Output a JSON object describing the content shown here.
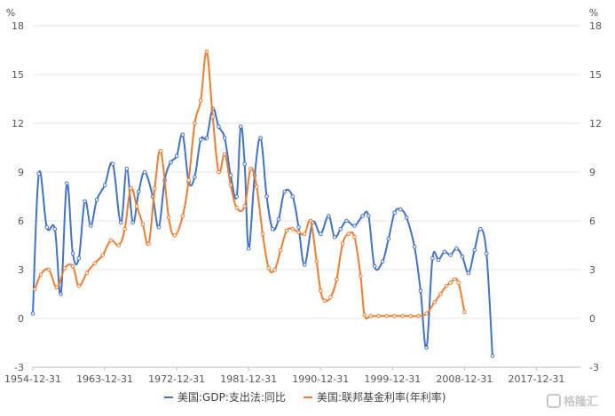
{
  "chart_data": {
    "type": "line",
    "title": "",
    "y_unit": "%",
    "ylim": [
      -3,
      18
    ],
    "yticks": [
      "-3",
      "0",
      "3",
      "6",
      "9",
      "12",
      "15",
      "18"
    ],
    "xlim": [
      1954.75,
      2023.25
    ],
    "xticks": [
      {
        "x": 1954.75,
        "label": "1954-12-31"
      },
      {
        "x": 1963.75,
        "label": "1963-12-31"
      },
      {
        "x": 1972.75,
        "label": "1972-12-31"
      },
      {
        "x": 1981.75,
        "label": "1981-12-31"
      },
      {
        "x": 1990.75,
        "label": "1990-12-31"
      },
      {
        "x": 1999.75,
        "label": "1999-12-31"
      },
      {
        "x": 2008.75,
        "label": "2008-12-31"
      },
      {
        "x": 2017.75,
        "label": "2017-12-31"
      }
    ],
    "series": [
      {
        "name": "美国:GDP:支出法:同比",
        "color": "#4472c4",
        "points": [
          [
            1954.75,
            0.3
          ],
          [
            1955.5,
            8.9
          ],
          [
            1956.5,
            5.6
          ],
          [
            1957.5,
            5.5
          ],
          [
            1958.25,
            1.5
          ],
          [
            1959.0,
            8.3
          ],
          [
            1959.75,
            4.0
          ],
          [
            1960.5,
            3.7
          ],
          [
            1961.25,
            7.2
          ],
          [
            1962.0,
            5.7
          ],
          [
            1962.75,
            7.3
          ],
          [
            1963.75,
            8.2
          ],
          [
            1964.75,
            9.5
          ],
          [
            1965.75,
            5.9
          ],
          [
            1966.5,
            9.2
          ],
          [
            1967.25,
            5.9
          ],
          [
            1968.0,
            7.8
          ],
          [
            1968.75,
            9.0
          ],
          [
            1969.75,
            7.5
          ],
          [
            1970.5,
            5.6
          ],
          [
            1971.25,
            8.5
          ],
          [
            1972.0,
            9.6
          ],
          [
            1972.75,
            10.0
          ],
          [
            1973.5,
            11.3
          ],
          [
            1974.25,
            8.4
          ],
          [
            1975.0,
            8.7
          ],
          [
            1975.75,
            11.0
          ],
          [
            1976.5,
            11.1
          ],
          [
            1977.25,
            12.9
          ],
          [
            1978.0,
            11.8
          ],
          [
            1978.75,
            11.1
          ],
          [
            1979.5,
            8.8
          ],
          [
            1980.25,
            7.5
          ],
          [
            1980.75,
            11.8
          ],
          [
            1981.25,
            9.5
          ],
          [
            1981.75,
            4.3
          ],
          [
            1982.5,
            8.8
          ],
          [
            1983.25,
            11.1
          ],
          [
            1984.0,
            7.5
          ],
          [
            1984.75,
            5.5
          ],
          [
            1985.5,
            6.1
          ],
          [
            1986.25,
            7.8
          ],
          [
            1987.25,
            7.5
          ],
          [
            1988.0,
            5.6
          ],
          [
            1988.75,
            3.3
          ],
          [
            1989.75,
            5.9
          ],
          [
            1990.75,
            5.2
          ],
          [
            1991.75,
            6.3
          ],
          [
            1992.5,
            5.0
          ],
          [
            1993.25,
            5.5
          ],
          [
            1994.0,
            6.0
          ],
          [
            1995.0,
            5.7
          ],
          [
            1996.0,
            6.3
          ],
          [
            1996.75,
            6.3
          ],
          [
            1997.5,
            3.2
          ],
          [
            1998.5,
            3.5
          ],
          [
            1999.25,
            4.9
          ],
          [
            2000.0,
            6.5
          ],
          [
            2000.75,
            6.7
          ],
          [
            2001.5,
            6.2
          ],
          [
            2002.5,
            4.4
          ],
          [
            2003.25,
            1.7
          ],
          [
            2004.0,
            -1.8
          ],
          [
            2004.75,
            3.7
          ],
          [
            2005.5,
            3.6
          ],
          [
            2006.25,
            4.1
          ],
          [
            2007.0,
            3.9
          ],
          [
            2007.75,
            4.3
          ],
          [
            2008.5,
            3.8
          ],
          [
            2009.25,
            2.8
          ],
          [
            2010.0,
            4.2
          ],
          [
            2010.75,
            5.5
          ],
          [
            2011.5,
            4.0
          ],
          [
            2012.25,
            -2.3
          ]
        ]
      },
      {
        "name": "美国:联邦基金利率(年利率)",
        "color": "#ed7d31",
        "points": [
          [
            1955.0,
            1.8
          ],
          [
            1955.75,
            2.7
          ],
          [
            1956.75,
            3.0
          ],
          [
            1957.75,
            1.9
          ],
          [
            1958.75,
            3.1
          ],
          [
            1959.75,
            3.2
          ],
          [
            1960.5,
            2.0
          ],
          [
            1961.5,
            2.8
          ],
          [
            1962.5,
            3.4
          ],
          [
            1963.5,
            3.9
          ],
          [
            1964.5,
            4.8
          ],
          [
            1965.5,
            4.5
          ],
          [
            1966.25,
            5.5
          ],
          [
            1967.0,
            8.0
          ],
          [
            1967.75,
            6.9
          ],
          [
            1968.5,
            5.8
          ],
          [
            1969.25,
            4.6
          ],
          [
            1970.0,
            8.0
          ],
          [
            1970.75,
            10.3
          ],
          [
            1971.75,
            6.2
          ],
          [
            1972.5,
            5.1
          ],
          [
            1973.5,
            6.3
          ],
          [
            1974.25,
            8.5
          ],
          [
            1975.0,
            12.0
          ],
          [
            1975.75,
            13.4
          ],
          [
            1976.5,
            16.4
          ],
          [
            1977.25,
            12.4
          ],
          [
            1978.0,
            9.0
          ],
          [
            1978.75,
            10.1
          ],
          [
            1979.5,
            8.2
          ],
          [
            1980.25,
            6.8
          ],
          [
            1981.25,
            6.9
          ],
          [
            1982.0,
            9.2
          ],
          [
            1982.75,
            8.1
          ],
          [
            1983.5,
            5.2
          ],
          [
            1984.25,
            3.1
          ],
          [
            1985.0,
            3.0
          ],
          [
            1985.75,
            4.2
          ],
          [
            1986.5,
            5.4
          ],
          [
            1987.25,
            5.5
          ],
          [
            1988.0,
            5.3
          ],
          [
            1988.75,
            5.2
          ],
          [
            1989.5,
            6.0
          ],
          [
            1990.25,
            3.5
          ],
          [
            1990.75,
            1.7
          ],
          [
            1991.25,
            1.1
          ],
          [
            1992.0,
            1.3
          ],
          [
            1992.75,
            2.4
          ],
          [
            1993.5,
            4.6
          ],
          [
            1994.25,
            5.2
          ],
          [
            1995.0,
            5.0
          ],
          [
            1995.75,
            2.6
          ],
          [
            1996.25,
            0.2
          ],
          [
            1997.0,
            0.15
          ],
          [
            1998.0,
            0.15
          ],
          [
            1999.0,
            0.15
          ],
          [
            2000.0,
            0.15
          ],
          [
            2001.0,
            0.15
          ],
          [
            2002.0,
            0.15
          ],
          [
            2003.0,
            0.15
          ],
          [
            2004.0,
            0.3
          ],
          [
            2005.0,
            1.0
          ],
          [
            2005.75,
            1.5
          ],
          [
            2006.5,
            2.0
          ],
          [
            2007.0,
            2.2
          ],
          [
            2007.5,
            2.4
          ],
          [
            2008.0,
            2.2
          ],
          [
            2008.75,
            0.4
          ]
        ]
      }
    ],
    "legend_position": "bottom-center",
    "watermark": "格隆汇"
  }
}
